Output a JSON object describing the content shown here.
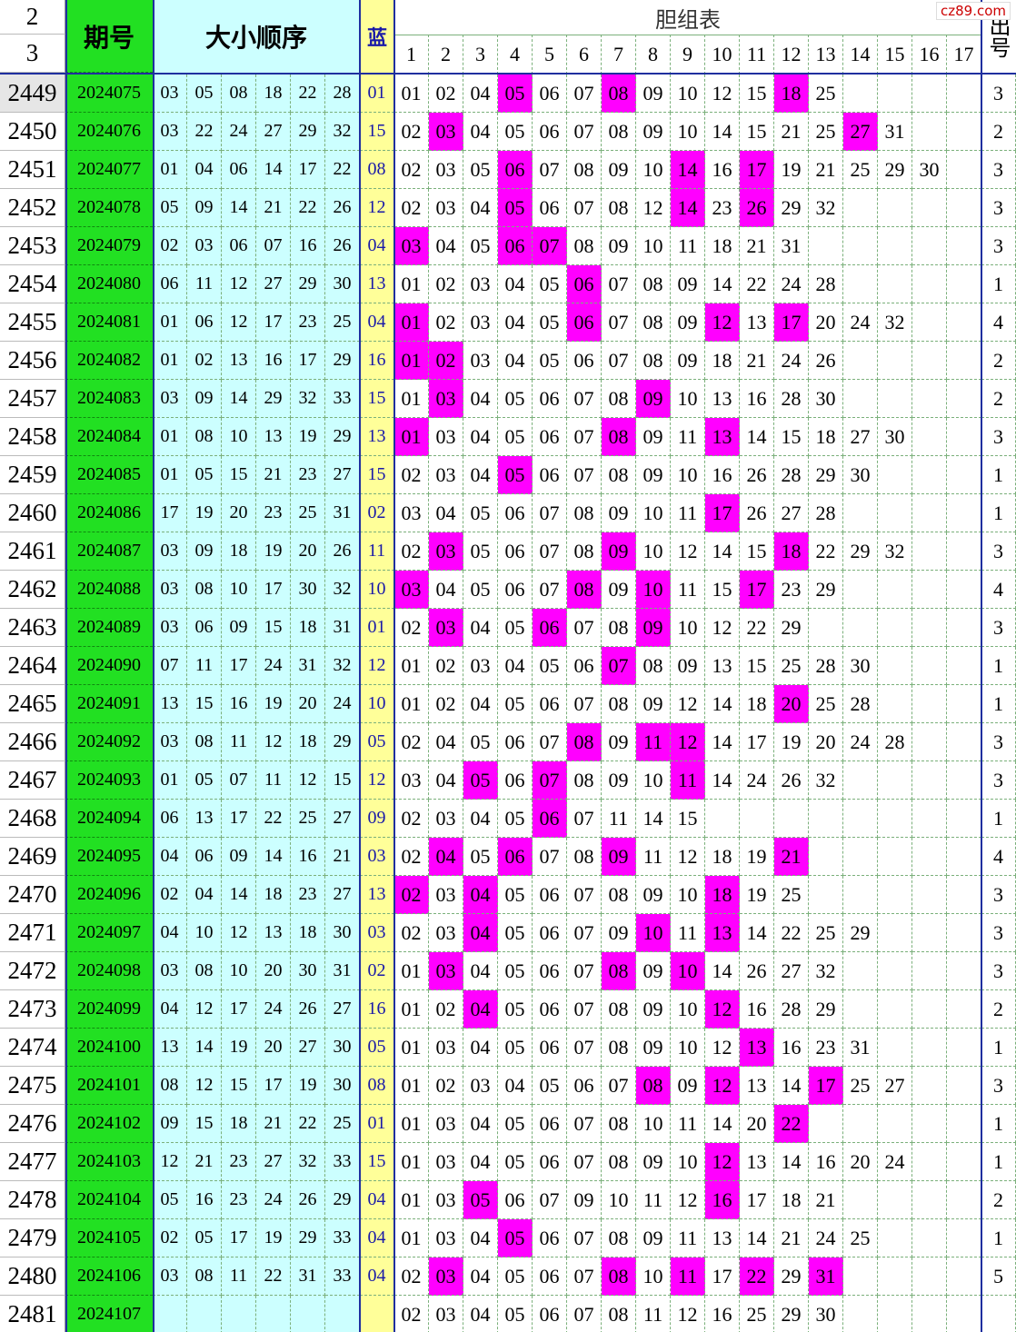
{
  "header": {
    "row_numbers": [
      "2",
      "3"
    ],
    "issue": "期号",
    "balls": "大小顺序",
    "blue": "蓝",
    "dan_title": "胆组表",
    "dan_columns": [
      "1",
      "2",
      "3",
      "4",
      "5",
      "6",
      "7",
      "8",
      "9",
      "10",
      "11",
      "12",
      "13",
      "14",
      "15",
      "16",
      "17"
    ],
    "count": "出号"
  },
  "watermark": "cz89.com",
  "rows": [
    {
      "row": "2449",
      "issue": "2024075",
      "balls": [
        "03",
        "05",
        "08",
        "18",
        "22",
        "28"
      ],
      "blue": "01",
      "dan": [
        "01",
        "02",
        "04",
        "05",
        "06",
        "07",
        "08",
        "09",
        "10",
        "12",
        "15",
        "18",
        "25"
      ],
      "count": "3"
    },
    {
      "row": "2450",
      "issue": "2024076",
      "balls": [
        "03",
        "22",
        "24",
        "27",
        "29",
        "32"
      ],
      "blue": "15",
      "dan": [
        "02",
        "03",
        "04",
        "05",
        "06",
        "07",
        "08",
        "09",
        "10",
        "14",
        "15",
        "21",
        "25",
        "27",
        "31"
      ],
      "count": "2"
    },
    {
      "row": "2451",
      "issue": "2024077",
      "balls": [
        "01",
        "04",
        "06",
        "14",
        "17",
        "22"
      ],
      "blue": "08",
      "dan": [
        "02",
        "03",
        "05",
        "06",
        "07",
        "08",
        "09",
        "10",
        "14",
        "16",
        "17",
        "19",
        "21",
        "25",
        "29",
        "30"
      ],
      "count": "3"
    },
    {
      "row": "2452",
      "issue": "2024078",
      "balls": [
        "05",
        "09",
        "14",
        "21",
        "22",
        "26"
      ],
      "blue": "12",
      "dan": [
        "02",
        "03",
        "04",
        "05",
        "06",
        "07",
        "08",
        "12",
        "14",
        "23",
        "26",
        "29",
        "32"
      ],
      "count": "3"
    },
    {
      "row": "2453",
      "issue": "2024079",
      "balls": [
        "02",
        "03",
        "06",
        "07",
        "16",
        "26"
      ],
      "blue": "04",
      "dan": [
        "03",
        "04",
        "05",
        "06",
        "07",
        "08",
        "09",
        "10",
        "11",
        "18",
        "21",
        "31"
      ],
      "count": "3"
    },
    {
      "row": "2454",
      "issue": "2024080",
      "balls": [
        "06",
        "11",
        "12",
        "27",
        "29",
        "30"
      ],
      "blue": "13",
      "dan": [
        "01",
        "02",
        "03",
        "04",
        "05",
        "06",
        "07",
        "08",
        "09",
        "14",
        "22",
        "24",
        "28"
      ],
      "count": "1"
    },
    {
      "row": "2455",
      "issue": "2024081",
      "balls": [
        "01",
        "06",
        "12",
        "17",
        "23",
        "25"
      ],
      "blue": "04",
      "dan": [
        "01",
        "02",
        "03",
        "04",
        "05",
        "06",
        "07",
        "08",
        "09",
        "12",
        "13",
        "17",
        "20",
        "24",
        "32"
      ],
      "count": "4"
    },
    {
      "row": "2456",
      "issue": "2024082",
      "balls": [
        "01",
        "02",
        "13",
        "16",
        "17",
        "29"
      ],
      "blue": "16",
      "dan": [
        "01",
        "02",
        "03",
        "04",
        "05",
        "06",
        "07",
        "08",
        "09",
        "18",
        "21",
        "24",
        "26"
      ],
      "count": "2"
    },
    {
      "row": "2457",
      "issue": "2024083",
      "balls": [
        "03",
        "09",
        "14",
        "29",
        "32",
        "33"
      ],
      "blue": "15",
      "dan": [
        "01",
        "03",
        "04",
        "05",
        "06",
        "07",
        "08",
        "09",
        "10",
        "13",
        "16",
        "28",
        "30"
      ],
      "count": "2"
    },
    {
      "row": "2458",
      "issue": "2024084",
      "balls": [
        "01",
        "08",
        "10",
        "13",
        "19",
        "29"
      ],
      "blue": "13",
      "dan": [
        "01",
        "03",
        "04",
        "05",
        "06",
        "07",
        "08",
        "09",
        "11",
        "13",
        "14",
        "15",
        "18",
        "27",
        "30"
      ],
      "count": "3"
    },
    {
      "row": "2459",
      "issue": "2024085",
      "balls": [
        "01",
        "05",
        "15",
        "21",
        "23",
        "27"
      ],
      "blue": "15",
      "dan": [
        "02",
        "03",
        "04",
        "05",
        "06",
        "07",
        "08",
        "09",
        "10",
        "16",
        "26",
        "28",
        "29",
        "30"
      ],
      "count": "1"
    },
    {
      "row": "2460",
      "issue": "2024086",
      "balls": [
        "17",
        "19",
        "20",
        "23",
        "25",
        "31"
      ],
      "blue": "02",
      "dan": [
        "03",
        "04",
        "05",
        "06",
        "07",
        "08",
        "09",
        "10",
        "11",
        "17",
        "26",
        "27",
        "28"
      ],
      "count": "1"
    },
    {
      "row": "2461",
      "issue": "2024087",
      "balls": [
        "03",
        "09",
        "18",
        "19",
        "20",
        "26"
      ],
      "blue": "11",
      "dan": [
        "02",
        "03",
        "05",
        "06",
        "07",
        "08",
        "09",
        "10",
        "12",
        "14",
        "15",
        "18",
        "22",
        "29",
        "32"
      ],
      "count": "3"
    },
    {
      "row": "2462",
      "issue": "2024088",
      "balls": [
        "03",
        "08",
        "10",
        "17",
        "30",
        "32"
      ],
      "blue": "10",
      "dan": [
        "03",
        "04",
        "05",
        "06",
        "07",
        "08",
        "09",
        "10",
        "11",
        "15",
        "17",
        "23",
        "29"
      ],
      "count": "4"
    },
    {
      "row": "2463",
      "issue": "2024089",
      "balls": [
        "03",
        "06",
        "09",
        "15",
        "18",
        "31"
      ],
      "blue": "01",
      "dan": [
        "02",
        "03",
        "04",
        "05",
        "06",
        "07",
        "08",
        "09",
        "10",
        "12",
        "22",
        "29"
      ],
      "count": "3"
    },
    {
      "row": "2464",
      "issue": "2024090",
      "balls": [
        "07",
        "11",
        "17",
        "24",
        "31",
        "32"
      ],
      "blue": "12",
      "dan": [
        "01",
        "02",
        "03",
        "04",
        "05",
        "06",
        "07",
        "08",
        "09",
        "13",
        "15",
        "25",
        "28",
        "30"
      ],
      "count": "1"
    },
    {
      "row": "2465",
      "issue": "2024091",
      "balls": [
        "13",
        "15",
        "16",
        "19",
        "20",
        "24"
      ],
      "blue": "10",
      "dan": [
        "01",
        "02",
        "04",
        "05",
        "06",
        "07",
        "08",
        "09",
        "12",
        "14",
        "18",
        "20",
        "25",
        "28"
      ],
      "count": "1"
    },
    {
      "row": "2466",
      "issue": "2024092",
      "balls": [
        "03",
        "08",
        "11",
        "12",
        "18",
        "29"
      ],
      "blue": "05",
      "dan": [
        "02",
        "04",
        "05",
        "06",
        "07",
        "08",
        "09",
        "11",
        "12",
        "14",
        "17",
        "19",
        "20",
        "24",
        "28"
      ],
      "count": "3"
    },
    {
      "row": "2467",
      "issue": "2024093",
      "balls": [
        "01",
        "05",
        "07",
        "11",
        "12",
        "15"
      ],
      "blue": "12",
      "dan": [
        "03",
        "04",
        "05",
        "06",
        "07",
        "08",
        "09",
        "10",
        "11",
        "14",
        "24",
        "26",
        "32"
      ],
      "count": "3"
    },
    {
      "row": "2468",
      "issue": "2024094",
      "balls": [
        "06",
        "13",
        "17",
        "22",
        "25",
        "27"
      ],
      "blue": "09",
      "dan": [
        "02",
        "03",
        "04",
        "05",
        "06",
        "07",
        "11",
        "14",
        "15"
      ],
      "count": "1"
    },
    {
      "row": "2469",
      "issue": "2024095",
      "balls": [
        "04",
        "06",
        "09",
        "14",
        "16",
        "21"
      ],
      "blue": "03",
      "dan": [
        "02",
        "04",
        "05",
        "06",
        "07",
        "08",
        "09",
        "11",
        "12",
        "18",
        "19",
        "21"
      ],
      "count": "4"
    },
    {
      "row": "2470",
      "issue": "2024096",
      "balls": [
        "02",
        "04",
        "14",
        "18",
        "23",
        "27"
      ],
      "blue": "13",
      "dan": [
        "02",
        "03",
        "04",
        "05",
        "06",
        "07",
        "08",
        "09",
        "10",
        "18",
        "19",
        "25"
      ],
      "count": "3"
    },
    {
      "row": "2471",
      "issue": "2024097",
      "balls": [
        "04",
        "10",
        "12",
        "13",
        "18",
        "30"
      ],
      "blue": "03",
      "dan": [
        "02",
        "03",
        "04",
        "05",
        "06",
        "07",
        "09",
        "10",
        "11",
        "13",
        "14",
        "22",
        "25",
        "29"
      ],
      "count": "3"
    },
    {
      "row": "2472",
      "issue": "2024098",
      "balls": [
        "03",
        "08",
        "10",
        "20",
        "30",
        "31"
      ],
      "blue": "02",
      "dan": [
        "01",
        "03",
        "04",
        "05",
        "06",
        "07",
        "08",
        "09",
        "10",
        "14",
        "26",
        "27",
        "32"
      ],
      "count": "3"
    },
    {
      "row": "2473",
      "issue": "2024099",
      "balls": [
        "04",
        "12",
        "17",
        "24",
        "26",
        "27"
      ],
      "blue": "16",
      "dan": [
        "01",
        "02",
        "04",
        "05",
        "06",
        "07",
        "08",
        "09",
        "10",
        "12",
        "16",
        "28",
        "29"
      ],
      "count": "2"
    },
    {
      "row": "2474",
      "issue": "2024100",
      "balls": [
        "13",
        "14",
        "19",
        "20",
        "27",
        "30"
      ],
      "blue": "05",
      "dan": [
        "01",
        "03",
        "04",
        "05",
        "06",
        "07",
        "08",
        "09",
        "10",
        "12",
        "13",
        "16",
        "23",
        "31"
      ],
      "count": "1"
    },
    {
      "row": "2475",
      "issue": "2024101",
      "balls": [
        "08",
        "12",
        "15",
        "17",
        "19",
        "30"
      ],
      "blue": "08",
      "dan": [
        "01",
        "02",
        "03",
        "04",
        "05",
        "06",
        "07",
        "08",
        "09",
        "12",
        "13",
        "14",
        "17",
        "25",
        "27"
      ],
      "count": "3"
    },
    {
      "row": "2476",
      "issue": "2024102",
      "balls": [
        "09",
        "15",
        "18",
        "21",
        "22",
        "25"
      ],
      "blue": "01",
      "dan": [
        "01",
        "03",
        "04",
        "05",
        "06",
        "07",
        "08",
        "10",
        "11",
        "14",
        "20",
        "22"
      ],
      "count": "1"
    },
    {
      "row": "2477",
      "issue": "2024103",
      "balls": [
        "12",
        "21",
        "23",
        "27",
        "32",
        "33"
      ],
      "blue": "15",
      "dan": [
        "01",
        "03",
        "04",
        "05",
        "06",
        "07",
        "08",
        "09",
        "10",
        "12",
        "13",
        "14",
        "16",
        "20",
        "24"
      ],
      "count": "1"
    },
    {
      "row": "2478",
      "issue": "2024104",
      "balls": [
        "05",
        "16",
        "23",
        "24",
        "26",
        "29"
      ],
      "blue": "04",
      "dan": [
        "01",
        "03",
        "05",
        "06",
        "07",
        "09",
        "10",
        "11",
        "12",
        "16",
        "17",
        "18",
        "21"
      ],
      "count": "2"
    },
    {
      "row": "2479",
      "issue": "2024105",
      "balls": [
        "02",
        "05",
        "17",
        "19",
        "29",
        "33"
      ],
      "blue": "04",
      "dan": [
        "01",
        "03",
        "04",
        "05",
        "06",
        "07",
        "08",
        "09",
        "11",
        "13",
        "14",
        "21",
        "24",
        "25"
      ],
      "count": "1"
    },
    {
      "row": "2480",
      "issue": "2024106",
      "balls": [
        "03",
        "08",
        "11",
        "22",
        "31",
        "33"
      ],
      "blue": "04",
      "dan": [
        "02",
        "03",
        "04",
        "05",
        "06",
        "07",
        "08",
        "10",
        "11",
        "17",
        "22",
        "29",
        "31"
      ],
      "count": "5"
    },
    {
      "row": "2481",
      "issue": "2024107",
      "balls": [],
      "dan": [
        "02",
        "03",
        "04",
        "05",
        "06",
        "07",
        "08",
        "11",
        "12",
        "16",
        "25",
        "29",
        "30"
      ]
    }
  ]
}
